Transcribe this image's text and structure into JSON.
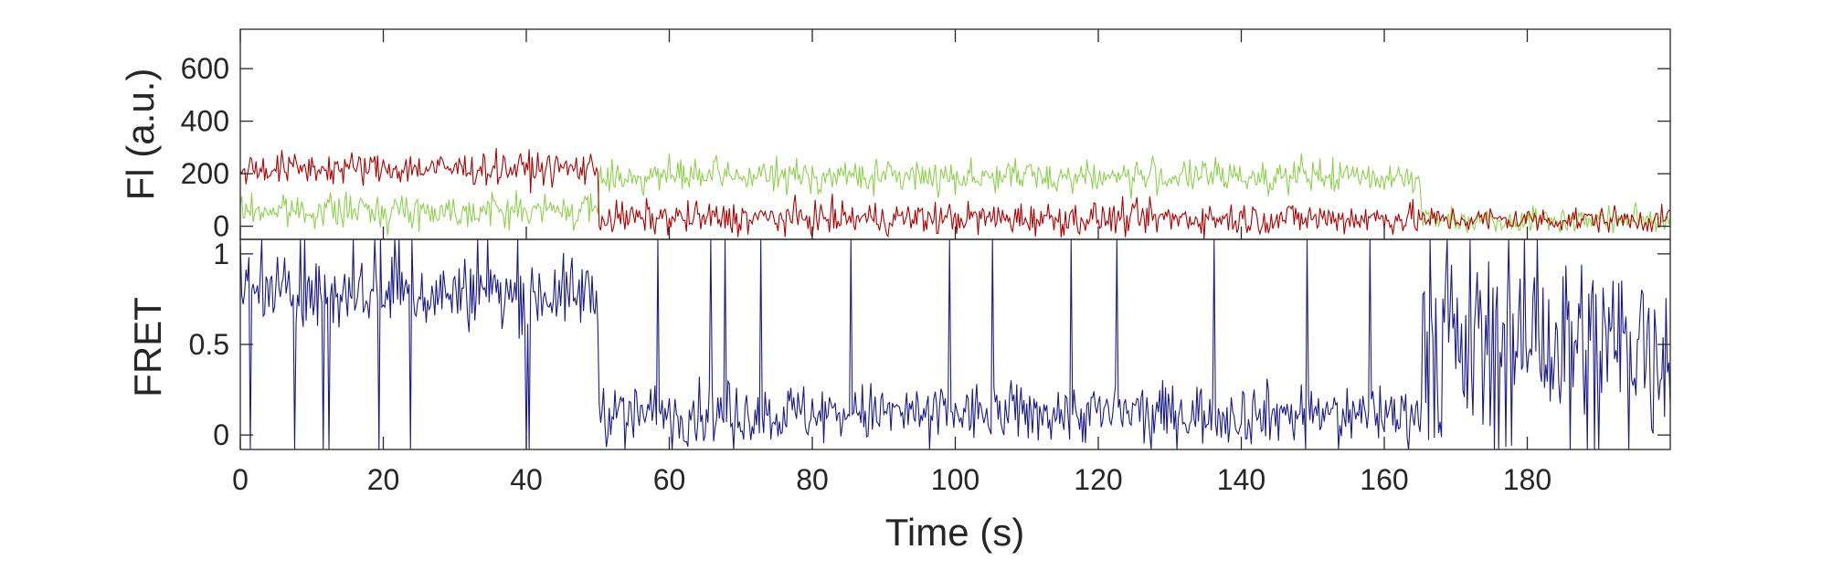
{
  "chart_data": [
    {
      "type": "line",
      "panel": "top",
      "ylabel": "Fl (a.u.)",
      "xlim": [
        0,
        200
      ],
      "ylim": [
        -50,
        750
      ],
      "yticks": [
        0,
        200,
        400,
        600
      ],
      "ytick_labels": [
        "0",
        "200",
        "400",
        "600"
      ],
      "grid": false,
      "colors": {
        "green": "#8fd14f",
        "red": "#b00000"
      },
      "segments": [
        {
          "x": [
            0,
            50
          ],
          "green_mean": 60,
          "red_mean": 220,
          "noise": 45
        },
        {
          "x": [
            50,
            165
          ],
          "green_mean": 190,
          "red_mean": 30,
          "noise": 45
        },
        {
          "x": [
            165,
            200
          ],
          "green_mean": 25,
          "red_mean": 25,
          "noise": 35
        }
      ]
    },
    {
      "type": "line",
      "panel": "bottom",
      "ylabel": "FRET",
      "xlabel": "Time (s)",
      "xlim": [
        0,
        200
      ],
      "ylim": [
        -0.08,
        1.08
      ],
      "yticks": [
        0,
        0.5,
        1
      ],
      "ytick_labels": [
        "0",
        "0.5",
        "1"
      ],
      "xticks": [
        0,
        20,
        40,
        60,
        80,
        100,
        120,
        140,
        160,
        180
      ],
      "xtick_labels": [
        "0",
        "20",
        "40",
        "60",
        "80",
        "100",
        "120",
        "140",
        "160",
        "180"
      ],
      "grid": false,
      "color": "#1a1a8c",
      "segments": [
        {
          "x": [
            0,
            50
          ],
          "mean": 0.78,
          "noise": 0.14
        },
        {
          "x": [
            50,
            165
          ],
          "mean": 0.12,
          "noise": 0.12
        },
        {
          "x": [
            165,
            200
          ],
          "mean": 0.5,
          "noise": 0.4
        }
      ]
    }
  ]
}
